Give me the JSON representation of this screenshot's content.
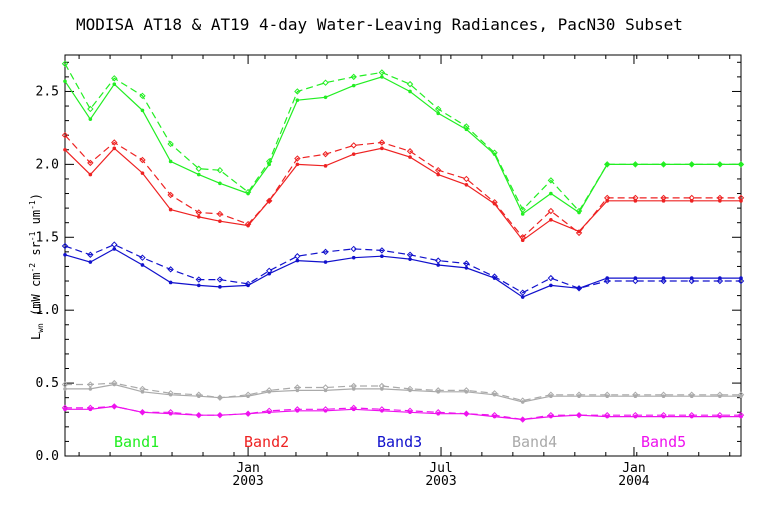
{
  "chart_data": {
    "type": "line",
    "title": "MODISA AT18 & AT19 4-day Water-Leaving Radiances, PacN30 Subset",
    "ylabel_main": "L",
    "ylabel_sub": "wn",
    "ylabel_rest": " (mW cm",
    "ylabel_sup1": "-2",
    "ylabel_mid": " sr",
    "ylabel_sup2": "-1",
    "ylabel_end": " um",
    "ylabel_sup3": "-1",
    "ylabel_close": ")",
    "ylim": [
      0.0,
      2.75
    ],
    "yticks": [
      "0.0",
      "0.5",
      "1.0",
      "1.5",
      "2.0",
      "2.5"
    ],
    "xlim": [
      0,
      48
    ],
    "xticks": [
      {
        "pos": 13,
        "month": "Jan",
        "year": "2003"
      },
      {
        "pos": 26.7,
        "month": "Jul",
        "year": "2003"
      },
      {
        "pos": 40.4,
        "month": "Jan",
        "year": "2004"
      }
    ],
    "x": [
      0,
      1.8,
      3.5,
      5.5,
      7.5,
      9.5,
      11,
      13,
      14.5,
      16.5,
      18.5,
      20.5,
      22.5,
      24.5,
      26.5,
      28.5,
      30.5,
      32.5,
      34.5,
      36.5,
      38.5,
      40.5,
      42.5,
      44.5,
      46.5,
      48
    ],
    "series": [
      {
        "name": "Band1",
        "color": "#22ee22",
        "solid": [
          2.57,
          2.31,
          2.55,
          2.37,
          2.02,
          1.93,
          1.87,
          1.8,
          2.0,
          2.44,
          2.46,
          2.54,
          2.6,
          2.5,
          2.35,
          2.24,
          2.07,
          1.66,
          1.8,
          1.67,
          2.0,
          2.0,
          2.0,
          2.0,
          2.0,
          2.0
        ],
        "dashed": [
          2.69,
          2.38,
          2.59,
          2.47,
          2.14,
          1.97,
          1.96,
          1.81,
          2.02,
          2.5,
          2.56,
          2.6,
          2.63,
          2.55,
          2.38,
          2.26,
          2.08,
          1.69,
          1.89,
          1.68,
          2.0,
          2.0,
          2.0,
          2.0,
          2.0,
          2.0
        ]
      },
      {
        "name": "Band2",
        "color": "#ee2222",
        "solid": [
          2.1,
          1.93,
          2.11,
          1.94,
          1.69,
          1.64,
          1.61,
          1.58,
          1.75,
          2.0,
          1.99,
          2.07,
          2.11,
          2.05,
          1.93,
          1.86,
          1.73,
          1.48,
          1.62,
          1.54,
          1.75,
          1.75,
          1.75,
          1.75,
          1.75,
          1.75
        ],
        "dashed": [
          2.2,
          2.01,
          2.15,
          2.03,
          1.79,
          1.67,
          1.66,
          1.59,
          1.75,
          2.04,
          2.07,
          2.13,
          2.15,
          2.09,
          1.96,
          1.9,
          1.74,
          1.5,
          1.68,
          1.53,
          1.77,
          1.77,
          1.77,
          1.77,
          1.77,
          1.77
        ]
      },
      {
        "name": "Band3",
        "color": "#1111cc",
        "solid": [
          1.38,
          1.33,
          1.42,
          1.31,
          1.19,
          1.17,
          1.16,
          1.17,
          1.25,
          1.34,
          1.33,
          1.36,
          1.37,
          1.35,
          1.31,
          1.29,
          1.22,
          1.09,
          1.17,
          1.15,
          1.22,
          1.22,
          1.22,
          1.22,
          1.22,
          1.22
        ],
        "dashed": [
          1.44,
          1.38,
          1.45,
          1.36,
          1.28,
          1.21,
          1.21,
          1.18,
          1.27,
          1.37,
          1.4,
          1.42,
          1.41,
          1.38,
          1.34,
          1.32,
          1.23,
          1.12,
          1.22,
          1.15,
          1.2,
          1.2,
          1.2,
          1.2,
          1.2,
          1.2
        ]
      },
      {
        "name": "Band4",
        "color": "#aaaaaa",
        "solid": [
          0.46,
          0.46,
          0.49,
          0.44,
          0.42,
          0.41,
          0.4,
          0.41,
          0.44,
          0.45,
          0.45,
          0.46,
          0.46,
          0.45,
          0.44,
          0.44,
          0.42,
          0.37,
          0.41,
          0.41,
          0.41,
          0.41,
          0.41,
          0.41,
          0.41,
          0.41
        ],
        "dashed": [
          0.49,
          0.49,
          0.5,
          0.46,
          0.43,
          0.42,
          0.4,
          0.42,
          0.45,
          0.47,
          0.47,
          0.48,
          0.48,
          0.46,
          0.45,
          0.45,
          0.43,
          0.38,
          0.42,
          0.42,
          0.42,
          0.42,
          0.42,
          0.42,
          0.42,
          0.42
        ]
      },
      {
        "name": "Band5",
        "color": "#ee11ee",
        "solid": [
          0.32,
          0.32,
          0.34,
          0.3,
          0.29,
          0.28,
          0.28,
          0.29,
          0.3,
          0.31,
          0.31,
          0.32,
          0.31,
          0.3,
          0.29,
          0.29,
          0.27,
          0.25,
          0.27,
          0.28,
          0.27,
          0.27,
          0.27,
          0.27,
          0.27,
          0.27
        ],
        "dashed": [
          0.33,
          0.33,
          0.34,
          0.3,
          0.3,
          0.28,
          0.28,
          0.29,
          0.31,
          0.32,
          0.32,
          0.33,
          0.32,
          0.31,
          0.3,
          0.29,
          0.28,
          0.25,
          0.28,
          0.28,
          0.28,
          0.28,
          0.28,
          0.28,
          0.28,
          0.28
        ]
      }
    ],
    "legend": [
      "Band1",
      "Band2",
      "Band3",
      "Band4",
      "Band5"
    ],
    "grid": false
  }
}
